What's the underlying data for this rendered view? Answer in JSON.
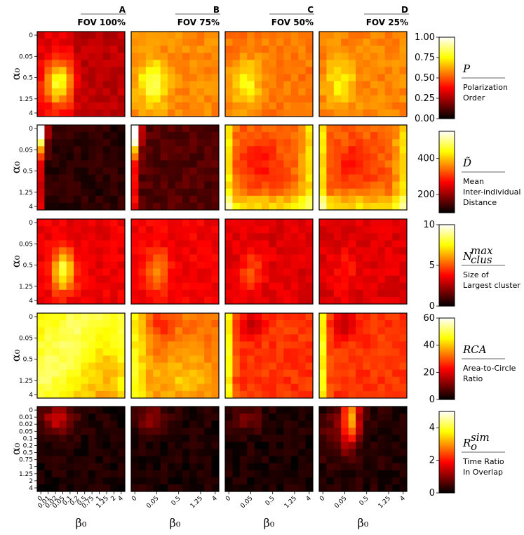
{
  "figure": {
    "columns": [
      {
        "letter": "A",
        "title": "FOV 100%"
      },
      {
        "letter": "B",
        "title": "FOV 75%"
      },
      {
        "letter": "C",
        "title": "FOV 50%"
      },
      {
        "letter": "D",
        "title": "FOV  25%"
      }
    ],
    "y_axis_label": "α₀",
    "x_axis_label": "β₀",
    "y_ticks_short": [
      "0",
      "0.05",
      "0.5",
      "1.25",
      "4"
    ],
    "y_ticks_full": [
      "0",
      "0.01",
      "0.02",
      "0.05",
      "0.1",
      "0.2",
      "0.5",
      "0.75",
      "1",
      "1.25",
      "2",
      "4"
    ],
    "x_ticks_full": [
      "0",
      "0.01",
      "0.02",
      "0.05",
      "0.1",
      "0.2",
      "0.5",
      "0.75",
      "1",
      "1.25",
      "2",
      "4"
    ],
    "x_ticks_short": [
      "0",
      "0.05",
      "0.5",
      "1.25",
      "4"
    ]
  },
  "chart_data": {
    "type": "heatmap",
    "grid_size": 12,
    "colormap": "hot",
    "rows": [
      {
        "metric": "P",
        "symbol": "P",
        "description": [
          "Polarization",
          "Order"
        ],
        "colorbar_ticks": [
          "0.00",
          "0.25",
          "0.50",
          "0.75",
          "1.00"
        ],
        "range": [
          0,
          1
        ]
      },
      {
        "metric": "D",
        "symbol": "D̃",
        "description": [
          "Mean",
          "Inter-individual",
          "Distance"
        ],
        "colorbar_ticks": [
          "200",
          "400"
        ],
        "range": [
          100,
          550
        ]
      },
      {
        "metric": "Nclus",
        "symbol": "N",
        "symbol_sup": "max",
        "symbol_sub": "clus",
        "description": [
          "Size of",
          "Largest cluster"
        ],
        "colorbar_ticks": [
          "0",
          "5",
          "10"
        ],
        "range": [
          0,
          10
        ]
      },
      {
        "metric": "RCA",
        "symbol": "RCA",
        "description": [
          "Area-to-Circle",
          "Ratio"
        ],
        "colorbar_ticks": [
          "0",
          "20",
          "40",
          "60"
        ],
        "range": [
          0,
          60
        ]
      },
      {
        "metric": "Ro",
        "symbol": "R",
        "symbol_sup": "sim",
        "symbol_sub": "o",
        "description": [
          "Time Ratio",
          "In Overlap"
        ],
        "colorbar_ticks": [
          "0",
          "2",
          "4"
        ],
        "range": [
          0,
          5
        ]
      }
    ]
  }
}
